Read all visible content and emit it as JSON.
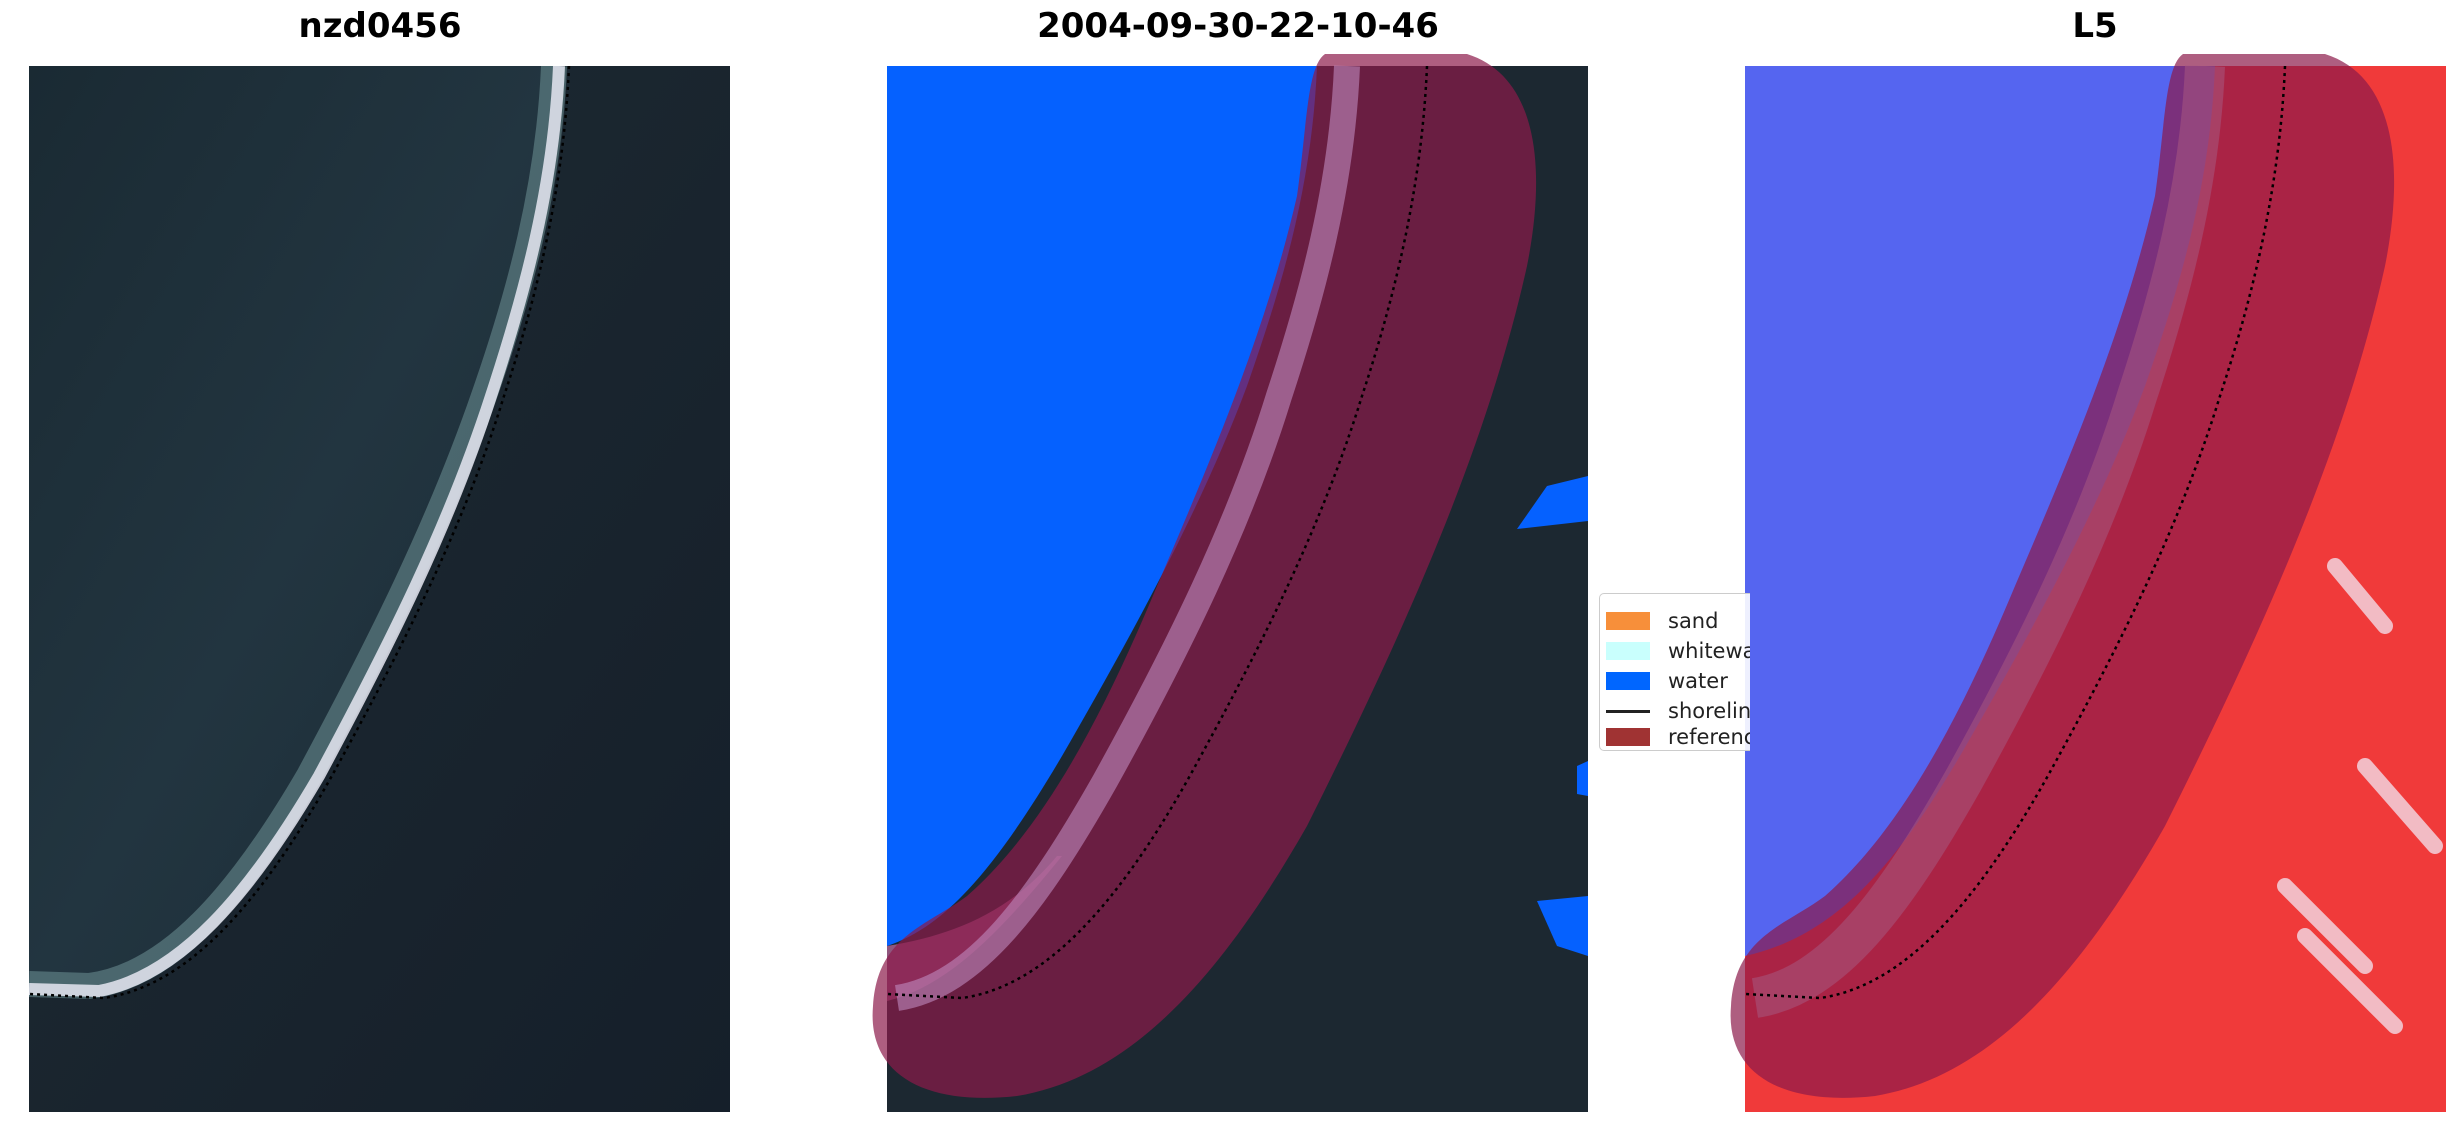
{
  "panels": [
    {
      "title": "nzd0456"
    },
    {
      "title": "2004-09-30-22-10-46"
    },
    {
      "title": "L5"
    }
  ],
  "legend": {
    "items": [
      {
        "label": "sand",
        "color": "#f78f3a",
        "kind": "patch"
      },
      {
        "label": "whitewater",
        "color": "#c9fffd",
        "kind": "patch"
      },
      {
        "label": "water",
        "color": "#0066ff",
        "kind": "patch"
      },
      {
        "label": "shoreline",
        "color": "#222222",
        "kind": "line"
      },
      {
        "label": "reference",
        "color": "#a03333",
        "kind": "patch"
      }
    ]
  },
  "colors": {
    "imagery_dark": "#1d2a33",
    "water_class": "#0561ff",
    "reference_buffer": "#8b1a4a",
    "index_blue": "#3b4cf0",
    "index_red": "#f03030",
    "index_white": "#f5f5ff"
  }
}
